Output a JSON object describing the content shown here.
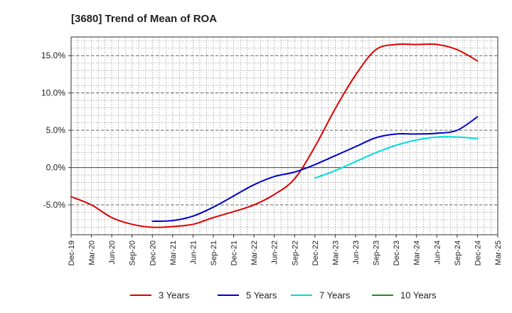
{
  "chart_data": {
    "type": "line",
    "title": "[3680]  Trend of Mean of ROA",
    "xlabel": "",
    "ylabel": "",
    "ylim": [
      -9.0,
      17.5
    ],
    "yticks": [
      -5.0,
      0.0,
      5.0,
      10.0,
      15.0
    ],
    "ytick_labels": [
      "-5.0%",
      "0.0%",
      "5.0%",
      "10.0%",
      "15.0%"
    ],
    "x_categories": [
      "Dec-19",
      "Mar-20",
      "Jun-20",
      "Sep-20",
      "Dec-20",
      "Mar-21",
      "Jun-21",
      "Sep-21",
      "Dec-21",
      "Mar-22",
      "Jun-22",
      "Sep-22",
      "Dec-22",
      "Mar-23",
      "Jun-23",
      "Sep-23",
      "Dec-23",
      "Mar-24",
      "Jun-24",
      "Sep-24",
      "Dec-24",
      "Mar-25"
    ],
    "grid": true,
    "legend_position": "bottom",
    "series": [
      {
        "name": "3 Years",
        "color": "#dd0000",
        "values": [
          -3.9,
          -5.0,
          -6.7,
          -7.6,
          -8.0,
          -7.9,
          -7.6,
          -6.7,
          -5.9,
          -5.0,
          -3.6,
          -1.5,
          2.8,
          7.9,
          12.4,
          15.8,
          16.5,
          16.5,
          16.5,
          15.8,
          14.3,
          null
        ]
      },
      {
        "name": "5 Years",
        "color": "#0000cc",
        "values": [
          null,
          null,
          null,
          null,
          -7.2,
          -7.1,
          -6.5,
          -5.3,
          -3.8,
          -2.3,
          -1.2,
          -0.6,
          0.4,
          1.6,
          2.8,
          4.0,
          4.5,
          4.5,
          4.6,
          5.0,
          6.8,
          null
        ]
      },
      {
        "name": "7 Years",
        "color": "#00dddd",
        "values": [
          null,
          null,
          null,
          null,
          null,
          null,
          null,
          null,
          null,
          null,
          null,
          null,
          -1.4,
          -0.4,
          0.8,
          2.0,
          3.0,
          3.7,
          4.1,
          4.1,
          3.9,
          null
        ]
      },
      {
        "name": "10 Years",
        "color": "#228b22",
        "values": [
          null,
          null,
          null,
          null,
          null,
          null,
          null,
          null,
          null,
          null,
          null,
          null,
          null,
          null,
          null,
          null,
          null,
          null,
          null,
          null,
          null,
          null
        ]
      }
    ]
  }
}
